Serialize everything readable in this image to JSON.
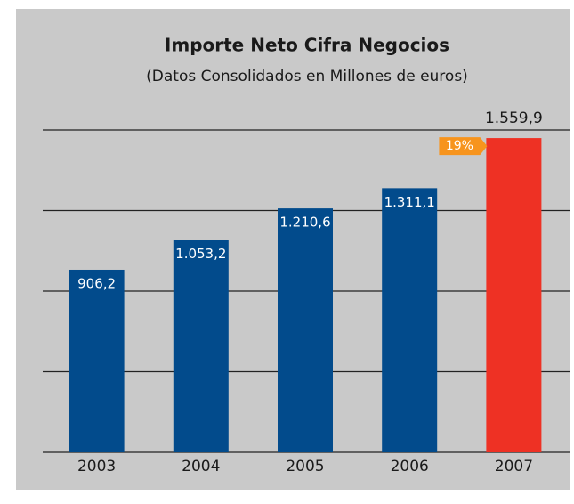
{
  "chart_data": {
    "type": "bar",
    "title": "Importe Neto Cifra Negocios",
    "subtitle": "(Datos Consolidados en Millones de euros)",
    "categories": [
      "2003",
      "2004",
      "2005",
      "2006",
      "2007"
    ],
    "values": [
      906.2,
      1053.2,
      1210.6,
      1311.1,
      1559.9
    ],
    "value_labels": [
      "906,2",
      "1.053,2",
      "1.210,6",
      "1.311,1",
      "1.559,9"
    ],
    "colors": [
      "#024b8c",
      "#024b8c",
      "#024b8c",
      "#024b8c",
      "#ee3124"
    ],
    "annotation": "19%",
    "annotation_color": "#f7941d",
    "ylim": [
      0,
      1600
    ],
    "yticks": [
      0,
      400,
      800,
      1200,
      1600
    ],
    "grid": true
  }
}
